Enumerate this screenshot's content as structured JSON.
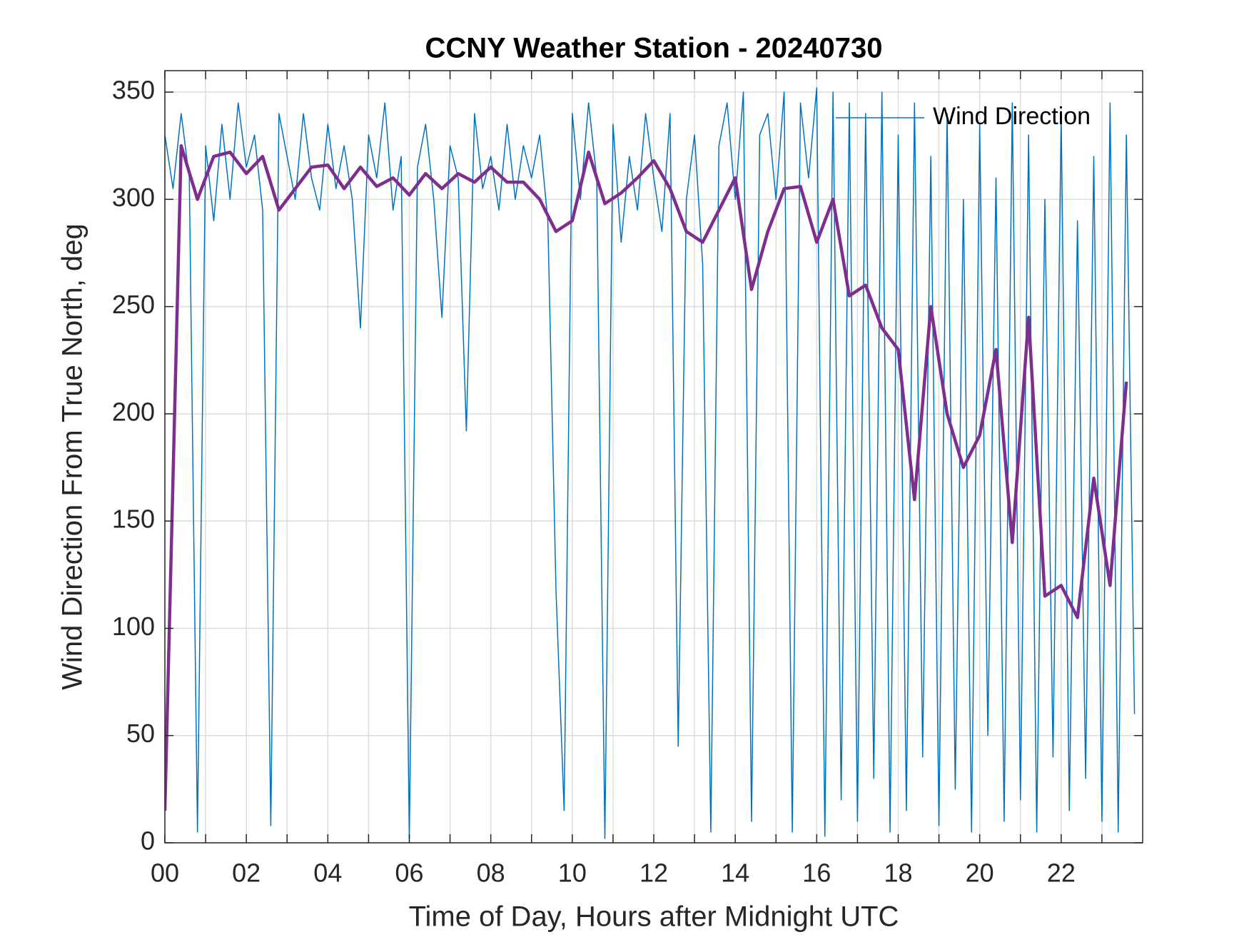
{
  "chart_data": {
    "type": "line",
    "title": "CCNY Weather Station - 20240730",
    "x_label": "Time of Day, Hours after Midnight UTC",
    "y_label": "Wind Direction From True North, deg",
    "xlim": [
      0,
      24
    ],
    "ylim": [
      0,
      360
    ],
    "xticks": [
      {
        "value": 0,
        "label": "00"
      },
      {
        "value": 2,
        "label": "02"
      },
      {
        "value": 4,
        "label": "04"
      },
      {
        "value": 6,
        "label": "06"
      },
      {
        "value": 8,
        "label": "08"
      },
      {
        "value": 10,
        "label": "10"
      },
      {
        "value": 12,
        "label": "12"
      },
      {
        "value": 14,
        "label": "14"
      },
      {
        "value": 16,
        "label": "16"
      },
      {
        "value": 18,
        "label": "18"
      },
      {
        "value": 20,
        "label": "20"
      },
      {
        "value": 22,
        "label": "22"
      }
    ],
    "xminorticks": [
      1,
      3,
      5,
      7,
      9,
      11,
      13,
      15,
      17,
      19,
      21,
      23
    ],
    "yticks": [
      0,
      50,
      100,
      150,
      200,
      250,
      300,
      350
    ],
    "grid": true,
    "legend": "top-right",
    "series": [
      {
        "name": "Wind Direction",
        "color": "#0072bd",
        "width": 1.5,
        "x": [
          0,
          0.2,
          0.4,
          0.6,
          0.8,
          1,
          1.2,
          1.4,
          1.6,
          1.8,
          2,
          2.2,
          2.4,
          2.6,
          2.8,
          3,
          3.2,
          3.4,
          3.6,
          3.8,
          4,
          4.2,
          4.4,
          4.6,
          4.8,
          5,
          5.2,
          5.4,
          5.6,
          5.8,
          6,
          6.2,
          6.4,
          6.6,
          6.8,
          7,
          7.2,
          7.4,
          7.6,
          7.8,
          8,
          8.2,
          8.4,
          8.6,
          8.8,
          9,
          9.2,
          9.4,
          9.6,
          9.8,
          10,
          10.2,
          10.4,
          10.6,
          10.8,
          11,
          11.2,
          11.4,
          11.6,
          11.8,
          12,
          12.2,
          12.4,
          12.6,
          12.8,
          13,
          13.2,
          13.4,
          13.6,
          13.8,
          14,
          14.2,
          14.4,
          14.6,
          14.8,
          15,
          15.2,
          15.4,
          15.6,
          15.8,
          16,
          16.2,
          16.4,
          16.6,
          16.8,
          17,
          17.2,
          17.4,
          17.6,
          17.8,
          18,
          18.2,
          18.4,
          18.6,
          18.8,
          19,
          19.2,
          19.4,
          19.6,
          19.8,
          20,
          20.2,
          20.4,
          20.6,
          20.8,
          21,
          21.2,
          21.4,
          21.6,
          21.8,
          22,
          22.2,
          22.4,
          22.6,
          22.8,
          23,
          23.2,
          23.4,
          23.6,
          23.8
        ],
        "values": [
          330,
          305,
          340,
          310,
          5,
          325,
          290,
          335,
          300,
          345,
          315,
          330,
          295,
          8,
          340,
          320,
          300,
          340,
          310,
          295,
          335,
          305,
          325,
          300,
          240,
          330,
          310,
          345,
          295,
          320,
          2,
          315,
          335,
          300,
          245,
          325,
          310,
          192,
          340,
          305,
          320,
          295,
          335,
          300,
          325,
          310,
          330,
          290,
          118,
          15,
          340,
          300,
          345,
          310,
          2,
          335,
          280,
          320,
          295,
          340,
          310,
          285,
          340,
          45,
          300,
          330,
          270,
          5,
          325,
          345,
          300,
          350,
          10,
          330,
          340,
          300,
          350,
          5,
          345,
          310,
          352,
          3,
          350,
          20,
          345,
          10,
          340,
          30,
          350,
          5,
          330,
          15,
          345,
          40,
          320,
          8,
          340,
          25,
          300,
          5,
          335,
          50,
          310,
          10,
          345,
          20,
          330,
          5,
          300,
          40,
          340,
          15,
          290,
          30,
          320,
          10,
          345,
          5,
          330,
          60
        ]
      },
      {
        "color": "#7e2f8e",
        "width": 4.5,
        "x": [
          0,
          0.4,
          0.8,
          1.2,
          1.6,
          2,
          2.4,
          2.8,
          3.2,
          3.6,
          4,
          4.4,
          4.8,
          5.2,
          5.6,
          6,
          6.4,
          6.8,
          7.2,
          7.6,
          8,
          8.4,
          8.8,
          9.2,
          9.6,
          10,
          10.4,
          10.8,
          11.2,
          11.6,
          12,
          12.4,
          12.8,
          13.2,
          13.6,
          14,
          14.4,
          14.8,
          15.2,
          15.6,
          16,
          16.4,
          16.8,
          17.2,
          17.6,
          18,
          18.4,
          18.8,
          19.2,
          19.6,
          20,
          20.4,
          20.8,
          21.2,
          21.6,
          22,
          22.4,
          22.8,
          23.2,
          23.6
        ],
        "values": [
          15,
          325,
          300,
          320,
          322,
          312,
          320,
          295,
          305,
          315,
          316,
          305,
          315,
          306,
          310,
          302,
          312,
          305,
          312,
          308,
          315,
          308,
          308,
          300,
          285,
          290,
          322,
          298,
          303,
          310,
          318,
          305,
          285,
          280,
          295,
          310,
          258,
          285,
          305,
          306,
          280,
          300,
          255,
          260,
          240,
          230,
          160,
          250,
          200,
          175,
          190,
          230,
          140,
          245,
          115,
          120,
          105,
          170,
          120,
          215
        ]
      }
    ]
  }
}
